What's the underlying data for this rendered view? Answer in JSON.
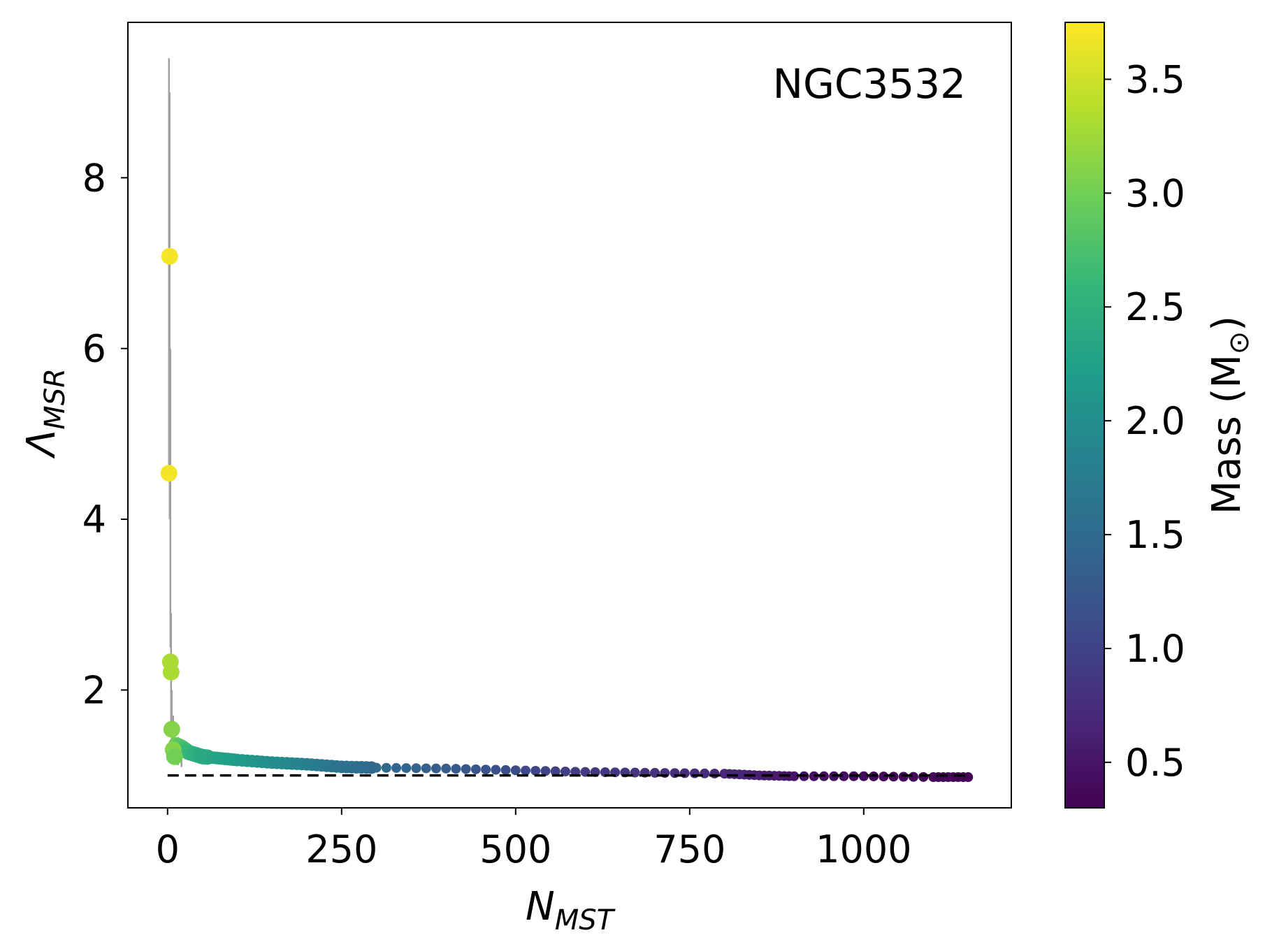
{
  "chart_data": {
    "type": "scatter",
    "annotation": "NGC3532",
    "xlabel": {
      "base": "N",
      "sub": "MST"
    },
    "ylabel": {
      "base": "Λ",
      "sub": "MSR"
    },
    "xlim": [
      -57,
      1212
    ],
    "ylim": [
      0.62,
      9.82
    ],
    "xticks": [
      0,
      250,
      500,
      750,
      1000
    ],
    "xtick_labels": [
      "0",
      "250",
      "500",
      "750",
      "1000"
    ],
    "yticks": [
      2,
      4,
      6,
      8
    ],
    "ytick_labels": [
      "2",
      "4",
      "6",
      "8"
    ],
    "reference_line": {
      "y": 1.0,
      "x_range": [
        0,
        1150
      ],
      "style": "dashed",
      "color": "#000000"
    },
    "error_envelope": {
      "color": "#a0a0a0",
      "x": [
        2,
        3,
        4,
        5,
        6,
        8,
        10,
        15,
        20
      ],
      "upper": [
        9.4,
        9.0,
        6.0,
        2.9,
        2.0,
        1.7,
        1.6,
        1.45,
        1.35
      ],
      "lower": [
        4.5,
        4.0,
        2.5,
        1.5,
        1.3,
        1.2,
        1.15,
        1.12,
        1.1
      ]
    },
    "highlight_points": [
      {
        "x": 3,
        "y": 7.08,
        "mass": 3.7
      },
      {
        "x": 2,
        "y": 4.54,
        "mass": 3.7
      },
      {
        "x": 4,
        "y": 2.33,
        "mass": 3.3
      },
      {
        "x": 5,
        "y": 2.21,
        "mass": 3.3
      },
      {
        "x": 6,
        "y": 1.54,
        "mass": 3.1
      },
      {
        "x": 8,
        "y": 1.3,
        "mass": 3.1
      },
      {
        "x": 10,
        "y": 1.22,
        "mass": 3.0
      }
    ],
    "trend": {
      "x": [
        12,
        20,
        30,
        50,
        75,
        100,
        150,
        200,
        250,
        300,
        400,
        500,
        600,
        700,
        800,
        850,
        900,
        1000,
        1100,
        1150
      ],
      "y": [
        1.36,
        1.33,
        1.27,
        1.22,
        1.2,
        1.18,
        1.15,
        1.13,
        1.1,
        1.09,
        1.08,
        1.06,
        1.04,
        1.03,
        1.02,
        1.0,
        0.99,
        0.99,
        0.98,
        0.98
      ],
      "mass": [
        3.0,
        2.8,
        2.6,
        2.4,
        2.3,
        2.2,
        2.0,
        1.8,
        1.6,
        1.5,
        1.3,
        1.1,
        0.9,
        0.8,
        0.7,
        0.6,
        0.5,
        0.4,
        0.35,
        0.3
      ]
    },
    "colorbar": {
      "label": "Mass (M",
      "label_symbol": "⊙",
      "label_close": ")",
      "range": [
        0.3,
        3.75
      ],
      "ticks": [
        0.5,
        1.0,
        1.5,
        2.0,
        2.5,
        3.0,
        3.5
      ],
      "tick_labels": [
        "0.5",
        "1.0",
        "1.5",
        "2.0",
        "2.5",
        "3.0",
        "3.5"
      ],
      "colormap": "viridis",
      "stops": [
        "#440154",
        "#482878",
        "#3e4989",
        "#31688e",
        "#26828e",
        "#1f9e89",
        "#35b779",
        "#6ece58",
        "#b5de2b",
        "#fde725"
      ]
    },
    "grid": false
  }
}
